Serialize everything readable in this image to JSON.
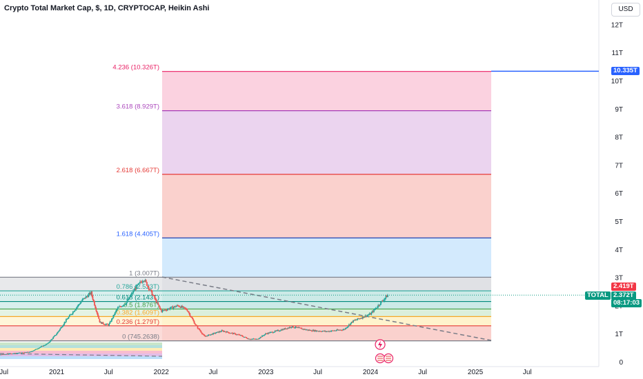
{
  "header": {
    "title": "Crypto Total Market Cap, $, 1D, CRYPTOCAP, Heikin Ashi",
    "currency": "USD"
  },
  "colors": {
    "up": "#26a69a",
    "down": "#ef5350",
    "fib_top": "#f48fb1",
    "fib_purple": "#ce93d8",
    "fib_red": "#f28b82",
    "fib_blue": "#90caf9",
    "fib_grey": "#b2b5be",
    "fib_teal": "#80cbc4",
    "fib_green": "#a5d6a7",
    "fib_yellow": "#ffe082",
    "trend": "#787b86",
    "axis_text": "#131722",
    "badge_blue": "#2962ff",
    "badge_red": "#f23645",
    "badge_teal": "#089981"
  },
  "y_axis": {
    "ticks": [
      "12T",
      "11T",
      "10T",
      "9T",
      "8T",
      "7T",
      "6T",
      "5T",
      "4T",
      "3T",
      "2T",
      "1T",
      "0"
    ]
  },
  "x_axis": {
    "ticks": [
      "Jul",
      "2021",
      "Jul",
      "2022",
      "Jul",
      "2023",
      "Jul",
      "2024",
      "Jul",
      "2025",
      "Jul"
    ]
  },
  "fib_levels": [
    {
      "label": "4.236 (10.326T)"
    },
    {
      "label": "3.618 (8.929T)"
    },
    {
      "label": "2.618 (6.667T)"
    },
    {
      "label": "1.618 (4.405T)"
    },
    {
      "label": "1 (3.007T)"
    },
    {
      "label": "0.786 (2.523T)"
    },
    {
      "label": "0.618 (2.143T)"
    },
    {
      "label": "0.5 (1.876T)"
    },
    {
      "label": "0.382 (1.609T)"
    },
    {
      "label": "0.236 (1.279T)"
    },
    {
      "label": "0 (745.2638)"
    }
  ],
  "badges": {
    "target": "10.335T",
    "price_red": "2.419T",
    "symbol": "TOTAL",
    "price": "2.372T",
    "countdown": "08:17:03"
  },
  "chart_data": {
    "type": "candlestick",
    "title": "Crypto Total Market Cap, $, 1D, CRYPTOCAP, Heikin Ashi",
    "ylim": [
      0,
      12
    ],
    "y_unit": "T",
    "x_range": [
      "2020-03",
      "2025-09"
    ],
    "fib_extension": [
      {
        "ratio": 4.236,
        "value": 10.326
      },
      {
        "ratio": 3.618,
        "value": 8.929
      },
      {
        "ratio": 2.618,
        "value": 6.667
      },
      {
        "ratio": 1.618,
        "value": 4.405
      },
      {
        "ratio": 1,
        "value": 3.007
      },
      {
        "ratio": 0.786,
        "value": 2.523
      },
      {
        "ratio": 0.618,
        "value": 2.143
      },
      {
        "ratio": 0.5,
        "value": 1.876
      },
      {
        "ratio": 0.382,
        "value": 1.609
      },
      {
        "ratio": 0.236,
        "value": 1.279
      },
      {
        "ratio": 0,
        "value": 0.745
      }
    ],
    "price_path": [
      [
        "2020-03",
        0.15
      ],
      [
        "2020-07",
        0.27
      ],
      [
        "2020-10",
        0.35
      ],
      [
        "2020-12",
        0.65
      ],
      [
        "2021-01",
        1.0
      ],
      [
        "2021-02",
        1.45
      ],
      [
        "2021-04",
        2.2
      ],
      [
        "2021-05",
        2.45
      ],
      [
        "2021-06",
        1.4
      ],
      [
        "2021-07",
        1.3
      ],
      [
        "2021-08",
        1.9
      ],
      [
        "2021-09",
        2.1
      ],
      [
        "2021-10",
        2.6
      ],
      [
        "2021-11",
        2.95
      ],
      [
        "2021-12",
        2.4
      ],
      [
        "2022-01",
        1.8
      ],
      [
        "2022-03",
        2.0
      ],
      [
        "2022-04",
        1.85
      ],
      [
        "2022-05",
        1.3
      ],
      [
        "2022-06",
        0.9
      ],
      [
        "2022-08",
        1.1
      ],
      [
        "2022-10",
        0.95
      ],
      [
        "2022-11",
        0.82
      ],
      [
        "2022-12",
        0.8
      ],
      [
        "2023-01",
        1.0
      ],
      [
        "2023-03",
        1.15
      ],
      [
        "2023-04",
        1.25
      ],
      [
        "2023-06",
        1.12
      ],
      [
        "2023-08",
        1.08
      ],
      [
        "2023-10",
        1.15
      ],
      [
        "2023-11",
        1.45
      ],
      [
        "2024-01",
        1.7
      ],
      [
        "2024-02",
        2.05
      ],
      [
        "2024-03",
        2.37
      ]
    ],
    "last_price": 2.372,
    "target_price": 10.335
  }
}
